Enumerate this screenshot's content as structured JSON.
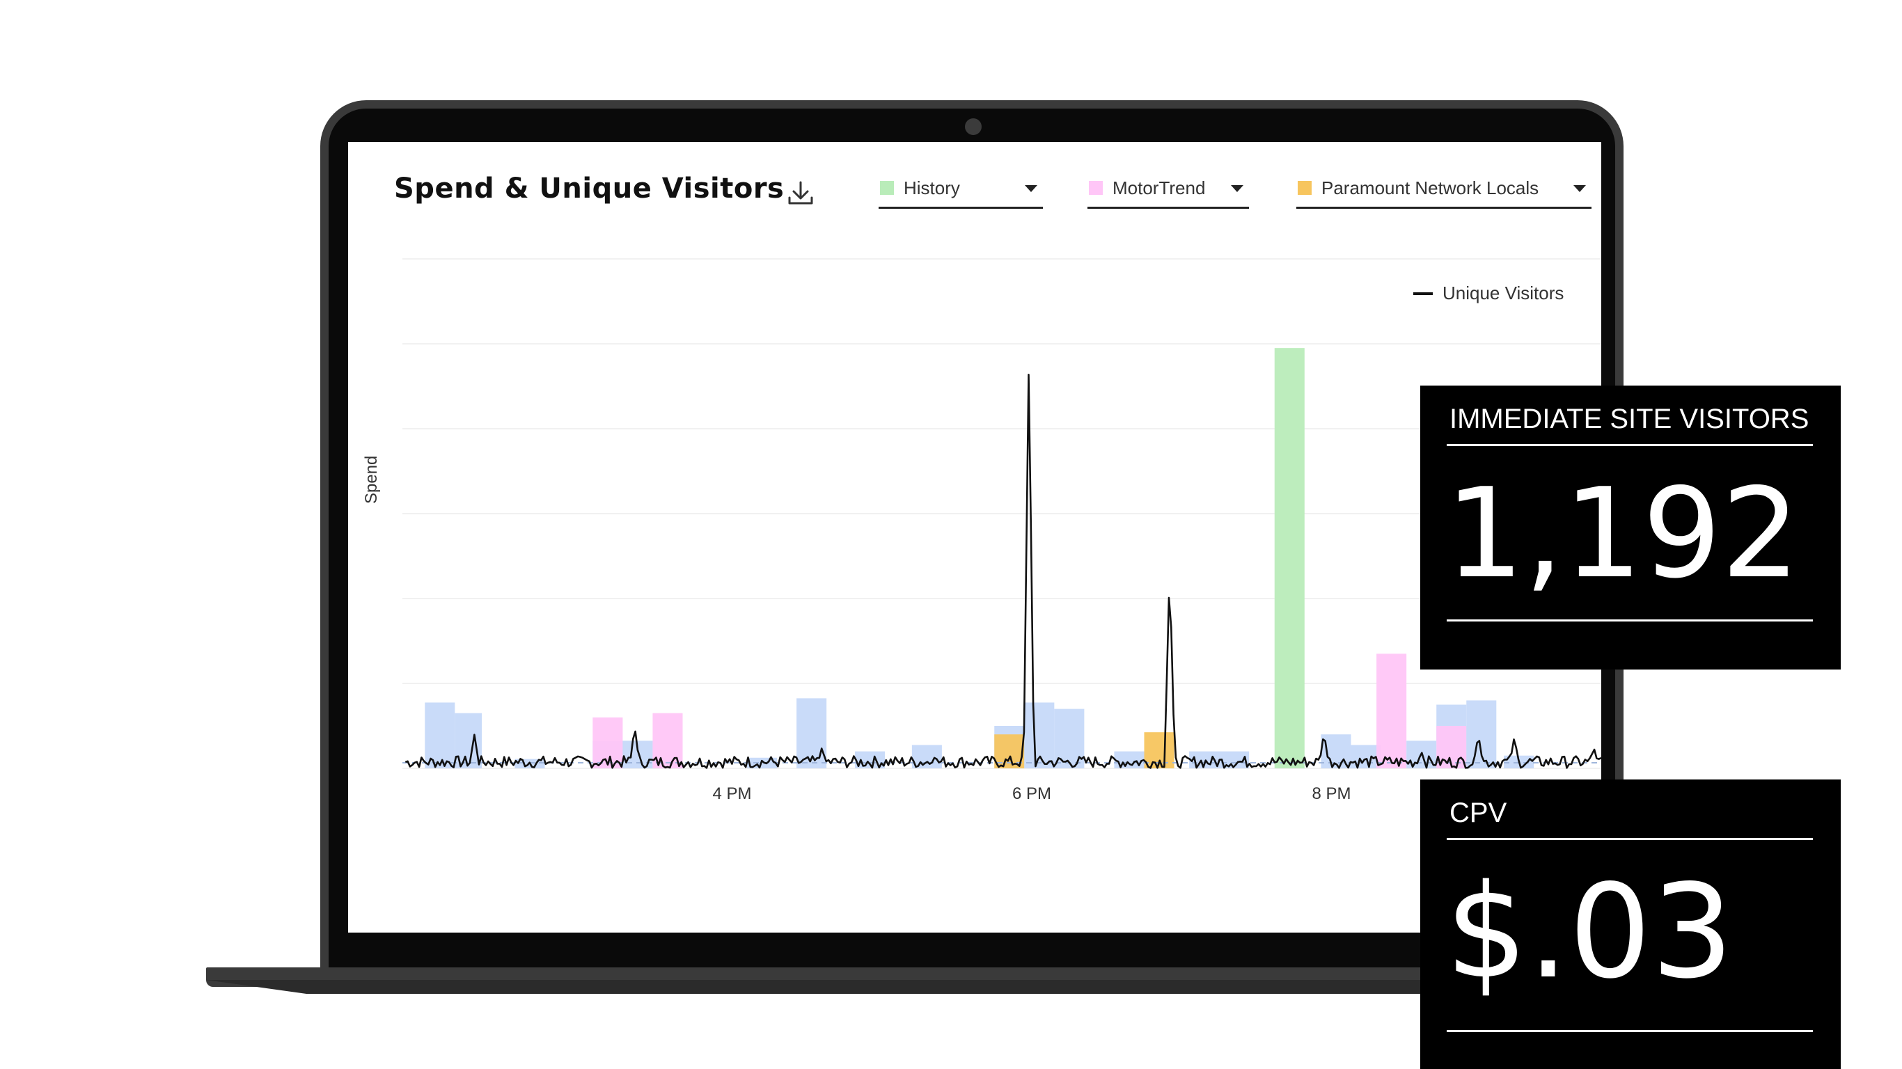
{
  "header": {
    "title": "Spend & Unique Visitors"
  },
  "filters": [
    {
      "label": "History",
      "color": "#b9ecb9"
    },
    {
      "label": "MotorTrend",
      "color": "#ffc6f7"
    },
    {
      "label": "Paramount Network Locals",
      "color": "#f7c55e"
    }
  ],
  "legend": {
    "unique_visitors": "Unique Visitors"
  },
  "axis": {
    "y_label": "Spend"
  },
  "colors": {
    "default_spend": "#c6d9f9",
    "history": "#b9ecb9",
    "motortrend": "#ffc6f7",
    "paramount": "#f7c55e",
    "visitors_line": "#111111",
    "card_bg": "#000000"
  },
  "stats": {
    "visitors": {
      "label": "IMMEDIATE SITE VISITORS",
      "value": "1,192"
    },
    "cpv": {
      "label": "CPV",
      "value": "$.03"
    }
  },
  "chart_data": {
    "type": "bar",
    "x_ticks": [
      "4 PM",
      "6 PM",
      "8 PM"
    ],
    "x_range_hours": [
      13.8,
      21.8
    ],
    "spend_bars": [
      {
        "start": 13.95,
        "end": 14.15,
        "value": 0.155,
        "network": "other"
      },
      {
        "start": 14.15,
        "end": 14.33,
        "value": 0.13,
        "network": "other"
      },
      {
        "start": 14.55,
        "end": 14.75,
        "value": 0.022,
        "network": "other"
      },
      {
        "start": 15.07,
        "end": 15.27,
        "value": 0.065,
        "network": "other"
      },
      {
        "start": 15.07,
        "end": 15.27,
        "value": 0.12,
        "network": "MotorTrend"
      },
      {
        "start": 15.27,
        "end": 15.47,
        "value": 0.065,
        "network": "other"
      },
      {
        "start": 15.47,
        "end": 15.67,
        "value": 0.13,
        "network": "MotorTrend"
      },
      {
        "start": 16.1,
        "end": 16.3,
        "value": 0.025,
        "network": "other"
      },
      {
        "start": 16.43,
        "end": 16.63,
        "value": 0.165,
        "network": "other"
      },
      {
        "start": 16.82,
        "end": 17.02,
        "value": 0.04,
        "network": "other"
      },
      {
        "start": 17.2,
        "end": 17.4,
        "value": 0.055,
        "network": "other"
      },
      {
        "start": 17.75,
        "end": 17.95,
        "value": 0.1,
        "network": "other"
      },
      {
        "start": 17.75,
        "end": 17.95,
        "value": 0.08,
        "network": "Paramount Network Locals"
      },
      {
        "start": 17.95,
        "end": 18.15,
        "value": 0.155,
        "network": "other"
      },
      {
        "start": 18.15,
        "end": 18.35,
        "value": 0.14,
        "network": "other"
      },
      {
        "start": 18.55,
        "end": 18.75,
        "value": 0.04,
        "network": "other"
      },
      {
        "start": 18.75,
        "end": 18.95,
        "value": 0.085,
        "network": "Paramount Network Locals"
      },
      {
        "start": 19.05,
        "end": 19.45,
        "value": 0.04,
        "network": "other"
      },
      {
        "start": 19.62,
        "end": 19.82,
        "value": 0.99,
        "network": "History"
      },
      {
        "start": 19.93,
        "end": 20.13,
        "value": 0.08,
        "network": "other"
      },
      {
        "start": 20.13,
        "end": 20.33,
        "value": 0.055,
        "network": "other"
      },
      {
        "start": 20.3,
        "end": 20.5,
        "value": 0.27,
        "network": "MotorTrend"
      },
      {
        "start": 20.5,
        "end": 20.7,
        "value": 0.065,
        "network": "other"
      },
      {
        "start": 20.7,
        "end": 20.9,
        "value": 0.15,
        "network": "other"
      },
      {
        "start": 20.7,
        "end": 20.9,
        "value": 0.1,
        "network": "MotorTrend"
      },
      {
        "start": 20.9,
        "end": 21.1,
        "value": 0.16,
        "network": "other"
      },
      {
        "start": 21.15,
        "end": 21.35,
        "value": 0.03,
        "network": "other"
      }
    ],
    "unique_visitors_spikes": [
      {
        "time": 14.28,
        "value": 0.08
      },
      {
        "time": 15.35,
        "value": 0.1
      },
      {
        "time": 16.6,
        "value": 0.05
      },
      {
        "time": 17.35,
        "value": 0.025
      },
      {
        "time": 17.98,
        "value": 0.96
      },
      {
        "time": 18.92,
        "value": 0.47
      },
      {
        "time": 19.95,
        "value": 0.085
      },
      {
        "time": 20.6,
        "value": 0.04
      },
      {
        "time": 20.98,
        "value": 0.08
      },
      {
        "time": 21.22,
        "value": 0.075
      },
      {
        "time": 21.75,
        "value": 0.05
      }
    ],
    "unique_visitors_baseline": 0.015,
    "grid": true,
    "legend_position": "top-right"
  }
}
